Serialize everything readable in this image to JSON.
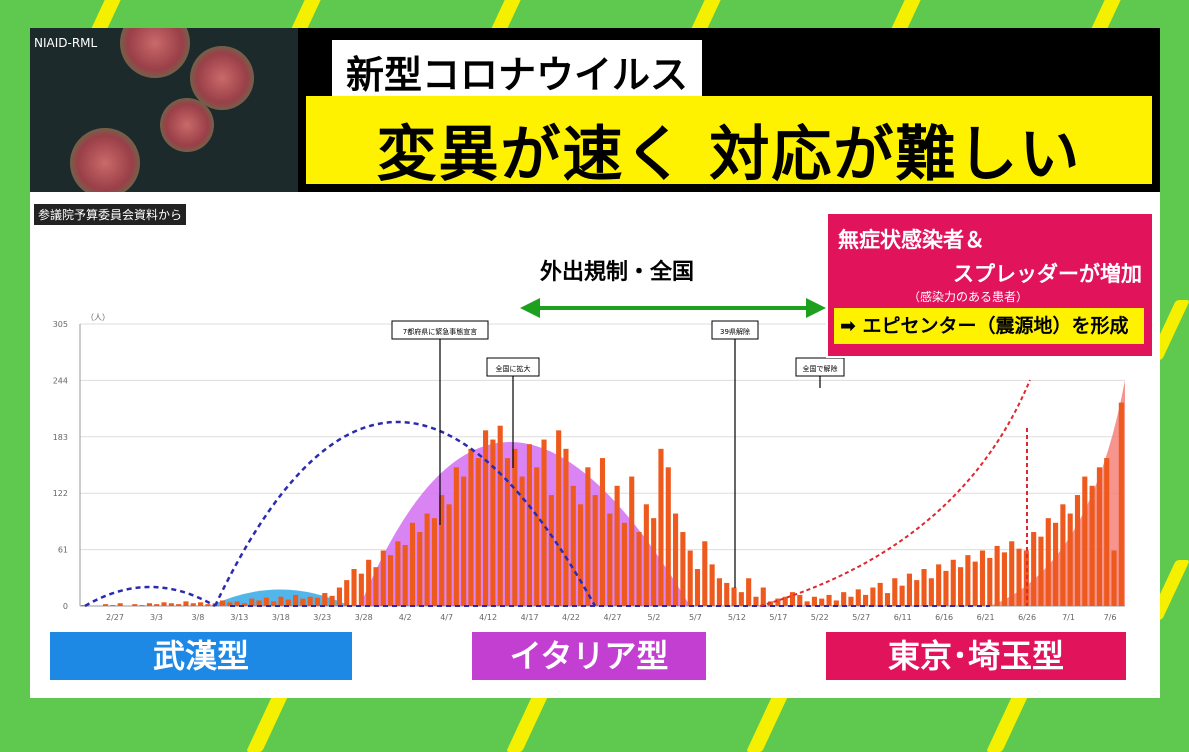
{
  "photo": {
    "credit": "NIAID-RML"
  },
  "headline": {
    "tag": "新型コロナウイルス",
    "main": "変異が速く 対応が難しい"
  },
  "source_note": "参議院予算委員会資料から",
  "announce": "外出規制・全国",
  "pinkbox": {
    "line1": "無症状感染者＆",
    "line2": "スプレッダーが増加",
    "line3": "（感染力のある患者）",
    "line4": "➡ エピセンター（震源地）を形成"
  },
  "labels": {
    "wuhan": "武漢型",
    "italy": "イタリア型",
    "tokyo": "東京･埼玉型"
  },
  "colors": {
    "wuhan": "#1e88e5",
    "italy": "#c23fd1",
    "tokyo": "#e0135b",
    "bars": "#ee5a1e",
    "line": "#2b2bb0"
  },
  "chart_data": {
    "type": "bar",
    "yaxis": {
      "unit": "（人）",
      "ticks": [
        "305",
        "244",
        "183",
        "122",
        "61",
        "0"
      ],
      "ylim": [
        0,
        305
      ]
    },
    "x_ticks": [
      "2/27",
      "3/3",
      "3/8",
      "3/13",
      "3/18",
      "3/23",
      "3/28",
      "4/2",
      "4/7",
      "4/12",
      "4/17",
      "4/22",
      "4/27",
      "5/2",
      "5/7",
      "5/12",
      "5/17",
      "5/22",
      "5/27",
      "6/11",
      "6/16",
      "6/21",
      "6/26",
      "7/1",
      "7/6"
    ],
    "annotations": [
      "7都府県に緊急事態宣言",
      "全国に拡大",
      "39県解除",
      "全国で解除"
    ],
    "values": [
      1,
      0,
      0,
      2,
      1,
      3,
      0,
      2,
      1,
      3,
      2,
      4,
      3,
      2,
      5,
      3,
      4,
      2,
      3,
      6,
      4,
      5,
      3,
      8,
      6,
      9,
      5,
      10,
      7,
      12,
      8,
      10,
      9,
      14,
      11,
      20,
      28,
      40,
      35,
      50,
      42,
      60,
      55,
      70,
      66,
      90,
      80,
      100,
      95,
      120,
      110,
      150,
      140,
      170,
      160,
      190,
      180,
      195,
      160,
      170,
      140,
      175,
      150,
      180,
      120,
      190,
      170,
      130,
      110,
      150,
      120,
      160,
      100,
      130,
      90,
      140,
      80,
      110,
      95,
      170,
      150,
      100,
      80,
      60,
      40,
      70,
      45,
      30,
      25,
      20,
      15,
      30,
      10,
      20,
      5,
      8,
      10,
      15,
      12,
      5,
      10,
      8,
      12,
      6,
      15,
      10,
      18,
      12,
      20,
      25,
      14,
      30,
      22,
      35,
      28,
      40,
      30,
      45,
      38,
      50,
      42,
      55,
      48,
      60,
      52,
      65,
      58,
      70,
      62,
      60,
      80,
      75,
      95,
      90,
      110,
      100,
      120,
      140,
      130,
      150,
      160,
      60,
      220
    ]
  }
}
